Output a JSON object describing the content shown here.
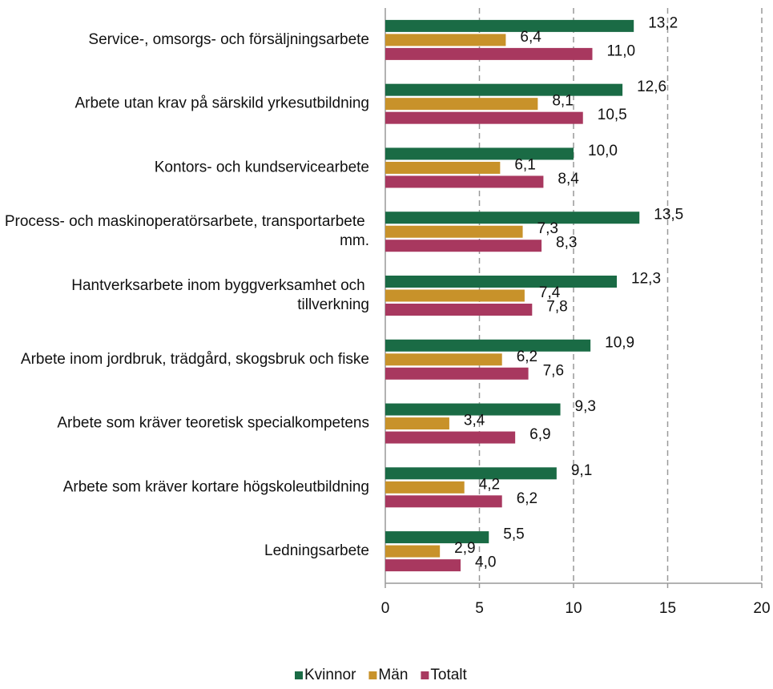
{
  "chart_data": {
    "type": "hbar",
    "categories": [
      "Service-, omsorgs- och försäljningsarbete",
      "Arbete utan krav på särskild yrkesutbildning",
      "Kontors- och kundservicearbete",
      "Process- och maskinoperatörsarbete, transportarbete mm.",
      "Hantverksarbete inom byggverksamhet och tillverkning",
      "Arbete inom jordbruk, trädgård, skogsbruk och fiske",
      "Arbete som kräver teoretisk specialkompetens",
      "Arbete som kräver kortare högskoleutbildning",
      "Ledningsarbete"
    ],
    "series": [
      {
        "name": "Kvinnor",
        "color": "#1a6b45",
        "values": [
          13.2,
          12.6,
          10.0,
          13.5,
          12.3,
          10.9,
          9.3,
          9.1,
          5.5
        ],
        "value_labels": [
          "13,2",
          "12,6",
          "10,0",
          "13,5",
          "12,3",
          "10,9",
          "9,3",
          "9,1",
          "5,5"
        ]
      },
      {
        "name": "Män",
        "color": "#c8922a",
        "values": [
          6.4,
          8.1,
          6.1,
          7.3,
          7.4,
          6.2,
          3.4,
          4.2,
          2.9
        ],
        "value_labels": [
          "6,4",
          "8,1",
          "6,1",
          "7,3",
          "7,4",
          "6,2",
          "3,4",
          "4,2",
          "2,9"
        ]
      },
      {
        "name": "Totalt",
        "color": "#a8385f",
        "values": [
          11.0,
          10.5,
          8.4,
          8.3,
          7.8,
          7.6,
          6.9,
          6.2,
          4.0
        ],
        "value_labels": [
          "11,0",
          "10,5",
          "8,4",
          "8,3",
          "7,8",
          "7,6",
          "6,9",
          "6,2",
          "4,0"
        ]
      }
    ],
    "xlim": [
      0,
      20
    ],
    "xticks": [
      0,
      5,
      10,
      15,
      20
    ],
    "grid": true,
    "legend": "bottom"
  }
}
